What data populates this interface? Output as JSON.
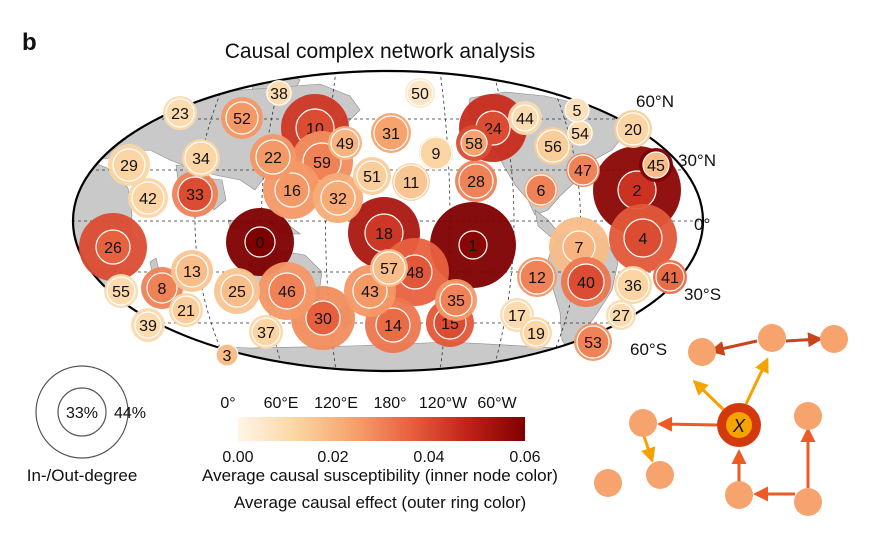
{
  "panel_label": "b",
  "title": "Causal complex network analysis",
  "lat_labels": [
    "60°N",
    "30°N",
    "0°",
    "30°S",
    "60°S"
  ],
  "lon_labels": [
    "0°",
    "60°E",
    "120°E",
    "180°",
    "120°W",
    "60°W"
  ],
  "legend_size": {
    "inner": "33%",
    "outer": "44%",
    "caption": "In-/Out-degree"
  },
  "colorbar": {
    "ticks": [
      "0.00",
      "0.02",
      "0.04",
      "0.06"
    ],
    "range": [
      0,
      0.06
    ],
    "label_inner": "Average causal susceptibility (inner node color)",
    "label_outer": "Average causal effect (outer ring color)",
    "colors": [
      "#fff5e6",
      "#fbd6a4",
      "#f6a36e",
      "#e8613f",
      "#c02218",
      "#7f0000"
    ]
  },
  "nodes": [
    {
      "id": "0",
      "inner": 0.06,
      "outer": 0.06
    },
    {
      "id": "1",
      "inner": 0.058,
      "outer": 0.06
    },
    {
      "id": "2",
      "inner": 0.045,
      "outer": 0.058
    },
    {
      "id": "3",
      "inner": 0.018,
      "outer": 0.018
    },
    {
      "id": "4",
      "inner": 0.04,
      "outer": 0.038
    },
    {
      "id": "5",
      "inner": 0.008,
      "outer": 0.008
    },
    {
      "id": "6",
      "inner": 0.03,
      "outer": 0.022
    },
    {
      "id": "7",
      "inner": 0.02,
      "outer": 0.018
    },
    {
      "id": "8",
      "inner": 0.03,
      "outer": 0.03
    },
    {
      "id": "9",
      "inner": 0.012,
      "outer": 0.012
    },
    {
      "id": "10",
      "inner": 0.04,
      "outer": 0.044
    },
    {
      "id": "11",
      "inner": 0.016,
      "outer": 0.014
    },
    {
      "id": "12",
      "inner": 0.03,
      "outer": 0.026
    },
    {
      "id": "13",
      "inner": 0.018,
      "outer": 0.016
    },
    {
      "id": "14",
      "inner": 0.034,
      "outer": 0.032
    },
    {
      "id": "15",
      "inner": 0.04,
      "outer": 0.038
    },
    {
      "id": "16",
      "inner": 0.026,
      "outer": 0.026
    },
    {
      "id": "17",
      "inner": 0.01,
      "outer": 0.01
    },
    {
      "id": "18",
      "inner": 0.044,
      "outer": 0.052
    },
    {
      "id": "19",
      "inner": 0.012,
      "outer": 0.012
    },
    {
      "id": "20",
      "inner": 0.012,
      "outer": 0.014
    },
    {
      "id": "21",
      "inner": 0.014,
      "outer": 0.012
    },
    {
      "id": "22",
      "inner": 0.026,
      "outer": 0.026
    },
    {
      "id": "23",
      "inner": 0.01,
      "outer": 0.01
    },
    {
      "id": "24",
      "inner": 0.04,
      "outer": 0.046
    },
    {
      "id": "25",
      "inner": 0.018,
      "outer": 0.016
    },
    {
      "id": "26",
      "inner": 0.036,
      "outer": 0.04
    },
    {
      "id": "27",
      "inner": 0.01,
      "outer": 0.01
    },
    {
      "id": "28",
      "inner": 0.03,
      "outer": 0.03
    },
    {
      "id": "29",
      "inner": 0.012,
      "outer": 0.012
    },
    {
      "id": "30",
      "inner": 0.036,
      "outer": 0.028
    },
    {
      "id": "31",
      "inner": 0.024,
      "outer": 0.024
    },
    {
      "id": "32",
      "inner": 0.022,
      "outer": 0.022
    },
    {
      "id": "33",
      "inner": 0.04,
      "outer": 0.03
    },
    {
      "id": "34",
      "inner": 0.012,
      "outer": 0.012
    },
    {
      "id": "35",
      "inner": 0.03,
      "outer": 0.026
    },
    {
      "id": "36",
      "inner": 0.012,
      "outer": 0.012
    },
    {
      "id": "37",
      "inner": 0.012,
      "outer": 0.012
    },
    {
      "id": "38",
      "inner": 0.01,
      "outer": 0.01
    },
    {
      "id": "39",
      "inner": 0.01,
      "outer": 0.01
    },
    {
      "id": "40",
      "inner": 0.04,
      "outer": 0.032
    },
    {
      "id": "41",
      "inner": 0.034,
      "outer": 0.034
    },
    {
      "id": "42",
      "inner": 0.012,
      "outer": 0.012
    },
    {
      "id": "43",
      "inner": 0.026,
      "outer": 0.026
    },
    {
      "id": "44",
      "inner": 0.01,
      "outer": 0.01
    },
    {
      "id": "45",
      "inner": 0.018,
      "outer": 0.06
    },
    {
      "id": "46",
      "inner": 0.03,
      "outer": 0.026
    },
    {
      "id": "47",
      "inner": 0.03,
      "outer": 0.03
    },
    {
      "id": "48",
      "inner": 0.038,
      "outer": 0.036
    },
    {
      "id": "49",
      "inner": 0.02,
      "outer": 0.02
    },
    {
      "id": "50",
      "inner": 0.006,
      "outer": 0.006
    },
    {
      "id": "51",
      "inner": 0.014,
      "outer": 0.014
    },
    {
      "id": "52",
      "inner": 0.026,
      "outer": 0.026
    },
    {
      "id": "53",
      "inner": 0.03,
      "outer": 0.026
    },
    {
      "id": "54",
      "inner": 0.01,
      "outer": 0.01
    },
    {
      "id": "55",
      "inner": 0.01,
      "outer": 0.01
    },
    {
      "id": "56",
      "inner": 0.014,
      "outer": 0.014
    },
    {
      "id": "57",
      "inner": 0.018,
      "outer": 0.018
    },
    {
      "id": "58",
      "inner": 0.024,
      "outer": 0.04
    },
    {
      "id": "59",
      "inner": 0.03,
      "outer": 0.028
    }
  ],
  "schematic": {
    "center_label": "X"
  }
}
